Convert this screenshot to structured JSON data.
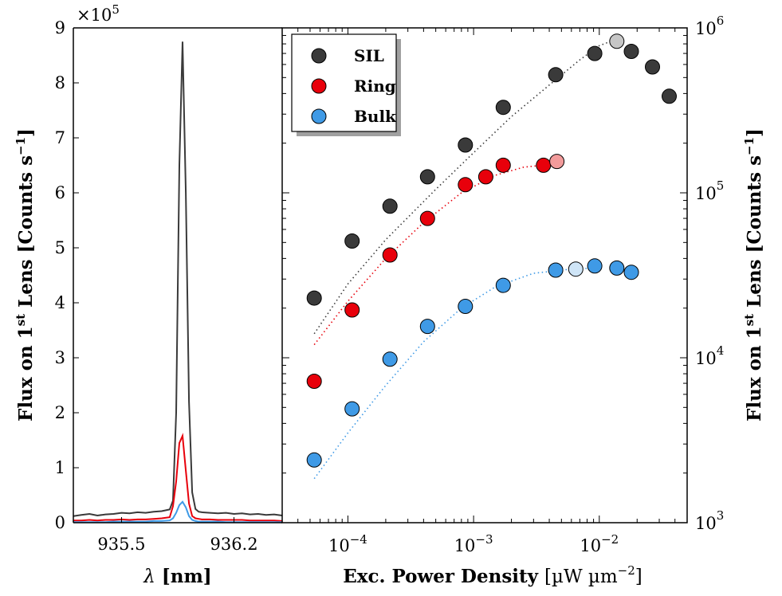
{
  "chart_data": [
    {
      "type": "line",
      "panel": "spectrum",
      "multiplier_label": "×10",
      "multiplier_exp": "5",
      "xlabel_symbol": "λ",
      "xlabel_unit": "[nm]",
      "ylabel": "Flux on 1",
      "ylabel_sup": "st",
      "ylabel_after": " Lens ",
      "ylabel_unit": "[Counts s",
      "ylabel_unit_sup": "−1",
      "ylabel_close": "]",
      "xlim": [
        935.2,
        936.5
      ],
      "ylim": [
        0,
        9
      ],
      "xticks": [
        935.5,
        936.2
      ],
      "xtick_labels": [
        "935.5",
        "936.2"
      ],
      "yticks": [
        0,
        1,
        2,
        3,
        4,
        5,
        6,
        7,
        8,
        9
      ],
      "ytick_labels": [
        "0",
        "1",
        "2",
        "3",
        "4",
        "5",
        "6",
        "7",
        "8",
        "9"
      ],
      "x": [
        935.2,
        935.25,
        935.3,
        935.35,
        935.4,
        935.45,
        935.5,
        935.55,
        935.6,
        935.65,
        935.7,
        935.75,
        935.8,
        935.82,
        935.84,
        935.86,
        935.88,
        935.9,
        935.92,
        935.94,
        935.96,
        935.98,
        936.0,
        936.05,
        936.1,
        936.15,
        936.2,
        936.25,
        936.3,
        936.35,
        936.4,
        936.45,
        936.5
      ],
      "series": [
        {
          "name": "SIL",
          "color": "#3a3a3a",
          "values": [
            0.12,
            0.14,
            0.16,
            0.13,
            0.15,
            0.16,
            0.18,
            0.17,
            0.19,
            0.18,
            0.2,
            0.21,
            0.24,
            0.4,
            2.0,
            6.5,
            8.75,
            6.0,
            2.2,
            0.55,
            0.25,
            0.2,
            0.19,
            0.18,
            0.17,
            0.18,
            0.16,
            0.17,
            0.15,
            0.16,
            0.14,
            0.15,
            0.13
          ]
        },
        {
          "name": "Ring",
          "color": "#e8000b",
          "values": [
            0.04,
            0.04,
            0.05,
            0.04,
            0.05,
            0.05,
            0.06,
            0.05,
            0.06,
            0.06,
            0.07,
            0.08,
            0.1,
            0.3,
            0.75,
            1.45,
            1.58,
            0.95,
            0.35,
            0.12,
            0.08,
            0.07,
            0.06,
            0.06,
            0.05,
            0.05,
            0.05,
            0.05,
            0.04,
            0.04,
            0.04,
            0.04,
            0.03
          ]
        },
        {
          "name": "Bulk",
          "color": "#3f9ae6",
          "values": [
            0.01,
            0.01,
            0.01,
            0.01,
            0.01,
            0.02,
            0.02,
            0.02,
            0.02,
            0.02,
            0.03,
            0.03,
            0.04,
            0.08,
            0.18,
            0.32,
            0.38,
            0.28,
            0.12,
            0.05,
            0.03,
            0.02,
            0.02,
            0.02,
            0.02,
            0.01,
            0.01,
            0.01,
            0.01,
            0.01,
            0.01,
            0.01,
            0.01
          ]
        }
      ]
    },
    {
      "type": "scatter",
      "panel": "power",
      "xscale": "log",
      "yscale": "log",
      "xlabel": "Exc. Power Density ",
      "xlabel_unit": "[µW µm",
      "xlabel_unit_sup": "−2",
      "xlabel_close": "]",
      "ylabel": "Flux on 1",
      "ylabel_sup": "st",
      "ylabel_after": " Lens ",
      "ylabel_unit": "[Counts s",
      "ylabel_unit_sup": "−1",
      "ylabel_close": "]",
      "xlim": [
        3e-05,
        0.05
      ],
      "ylim": [
        1000,
        1000000
      ],
      "xticks": [
        0.0001,
        0.001,
        0.01
      ],
      "xtick_labels": [
        {
          "base": "10",
          "exp": "−4"
        },
        {
          "base": "10",
          "exp": "−3"
        },
        {
          "base": "10",
          "exp": "−2"
        }
      ],
      "yticks": [
        1000,
        10000,
        100000,
        1000000
      ],
      "ytick_labels": [
        {
          "base": "10",
          "exp": "3"
        },
        {
          "base": "10",
          "exp": "4"
        },
        {
          "base": "10",
          "exp": "5"
        },
        {
          "base": "10",
          "exp": "6"
        }
      ],
      "legend": {
        "location": "top-left",
        "entries": [
          "SIL",
          "Ring",
          "Bulk"
        ]
      },
      "series": [
        {
          "name": "SIL",
          "color": "#3a3a3a",
          "highlight_color": "#c6c6c6",
          "highlight_index": 9,
          "x": [
            5.4e-05,
            0.000108,
            0.000216,
            0.00043,
            0.00086,
            0.00172,
            0.0045,
            0.0092,
            0.0138,
            0.018,
            0.0265,
            0.036
          ],
          "y": [
            23000,
            51000,
            83000,
            125000,
            195000,
            330000,
            520000,
            700000,
            830000,
            720000,
            580000,
            385000
          ],
          "fit": {
            "x": [
              5.4e-05,
              0.0001,
              0.0002,
              0.0005,
              0.001,
              0.002,
              0.004,
              0.007,
              0.01,
              0.014
            ],
            "y": [
              14000,
              28000,
              52000,
              105000,
              175000,
              290000,
              450000,
              640000,
              780000,
              860000
            ]
          }
        },
        {
          "name": "Ring",
          "color": "#e8000b",
          "highlight_color": "#f29b9b",
          "highlight_index": 9,
          "x": [
            5.4e-05,
            0.000108,
            0.000216,
            0.00043,
            0.00086,
            0.00125,
            0.00172,
            0.0036,
            0.0046
          ],
          "y": [
            7200,
            19500,
            42000,
            70000,
            112000,
            125000,
            147000,
            147000,
            155000
          ],
          "highlight": {
            "x": 0.0046,
            "y": 155000
          },
          "fit": {
            "x": [
              5.4e-05,
              0.0001,
              0.0002,
              0.0004,
              0.0008,
              0.0015,
              0.0025,
              0.0046
            ],
            "y": [
              12000,
              22000,
              40000,
              66000,
              100000,
              128000,
              143000,
              150000
            ]
          }
        },
        {
          "name": "Bulk",
          "color": "#3f9ae6",
          "highlight_color": "#cfe5f7",
          "highlight_index": 6,
          "x": [
            5.4e-05,
            0.000108,
            0.000216,
            0.00043,
            0.00086,
            0.00172,
            0.0045,
            0.0065,
            0.0092,
            0.0138,
            0.018
          ],
          "y": [
            2400,
            4900,
            9800,
            15500,
            20500,
            27500,
            34000,
            34500,
            36000,
            35000,
            33000
          ],
          "fit": {
            "x": [
              5.4e-05,
              0.0001,
              0.0002,
              0.0004,
              0.0008,
              0.0015,
              0.003,
              0.006,
              0.0092
            ],
            "y": [
              1850,
              3500,
              6800,
              12500,
              20000,
              27000,
              32500,
              34500,
              35000
            ]
          }
        }
      ]
    }
  ]
}
